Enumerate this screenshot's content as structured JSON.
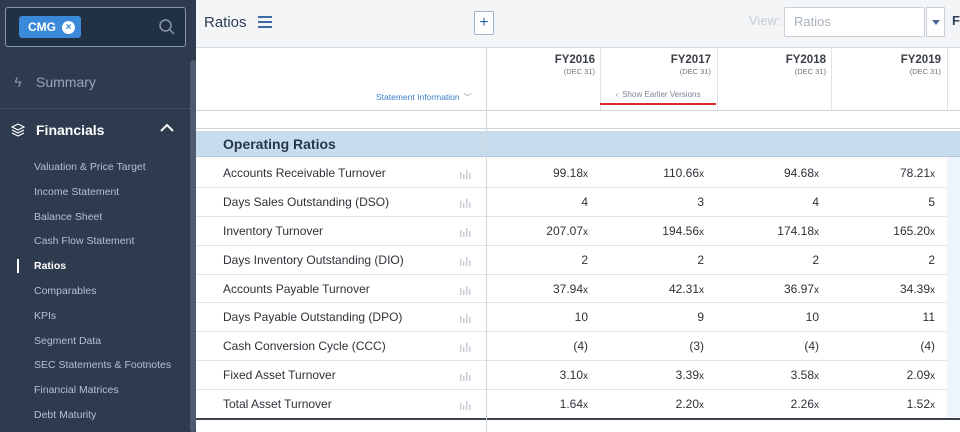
{
  "sidebar": {
    "ticker": "CMG",
    "nav_summary": "Summary",
    "nav_financials": "Financials",
    "items": [
      {
        "label": "Valuation & Price Target"
      },
      {
        "label": "Income Statement"
      },
      {
        "label": "Balance Sheet"
      },
      {
        "label": "Cash Flow Statement"
      },
      {
        "label": "Ratios",
        "active": true
      },
      {
        "label": "Comparables"
      },
      {
        "label": "KPIs"
      },
      {
        "label": "Segment Data"
      },
      {
        "label": "SEC Statements & Footnotes"
      },
      {
        "label": "Financial Matrices"
      },
      {
        "label": "Debt Maturity"
      }
    ]
  },
  "topbar": {
    "title": "Ratios",
    "add_label": "+",
    "view_label": "View:",
    "view_placeholder": "Ratios",
    "extra": "F"
  },
  "header": {
    "statement_info": "Statement Information",
    "show_earlier": "Show Earlier Versions",
    "columns": [
      {
        "year": "FY2016",
        "date": "(DEC 31)"
      },
      {
        "year": "FY2017",
        "date": "(DEC 31)"
      },
      {
        "year": "FY2018",
        "date": "(DEC 31)"
      },
      {
        "year": "FY2019",
        "date": "(DEC 31)"
      }
    ]
  },
  "table": {
    "section_title": "Operating Ratios",
    "rows": [
      {
        "label": "Accounts Receivable Turnover",
        "values": [
          "99.18",
          "110.66",
          "94.68",
          "78.21"
        ],
        "suffix": "x"
      },
      {
        "label": "Days Sales Outstanding (DSO)",
        "values": [
          "4",
          "3",
          "4",
          "5"
        ],
        "suffix": ""
      },
      {
        "label": "Inventory Turnover",
        "values": [
          "207.07",
          "194.56",
          "174.18",
          "165.20"
        ],
        "suffix": "x"
      },
      {
        "label": "Days Inventory Outstanding (DIO)",
        "values": [
          "2",
          "2",
          "2",
          "2"
        ],
        "suffix": ""
      },
      {
        "label": "Accounts Payable Turnover",
        "values": [
          "37.94",
          "42.31",
          "36.97",
          "34.39"
        ],
        "suffix": "x"
      },
      {
        "label": "Days Payable Outstanding (DPO)",
        "values": [
          "10",
          "9",
          "10",
          "11"
        ],
        "suffix": ""
      },
      {
        "label": "Cash Conversion Cycle (CCC)",
        "values": [
          "(4)",
          "(3)",
          "(4)",
          "(4)"
        ],
        "suffix": ""
      },
      {
        "label": "Fixed Asset Turnover",
        "values": [
          "3.10",
          "3.39",
          "3.58",
          "2.09"
        ],
        "suffix": "x"
      },
      {
        "label": "Total Asset Turnover",
        "values": [
          "1.64",
          "2.20",
          "2.26",
          "1.52"
        ],
        "suffix": "x"
      }
    ]
  }
}
